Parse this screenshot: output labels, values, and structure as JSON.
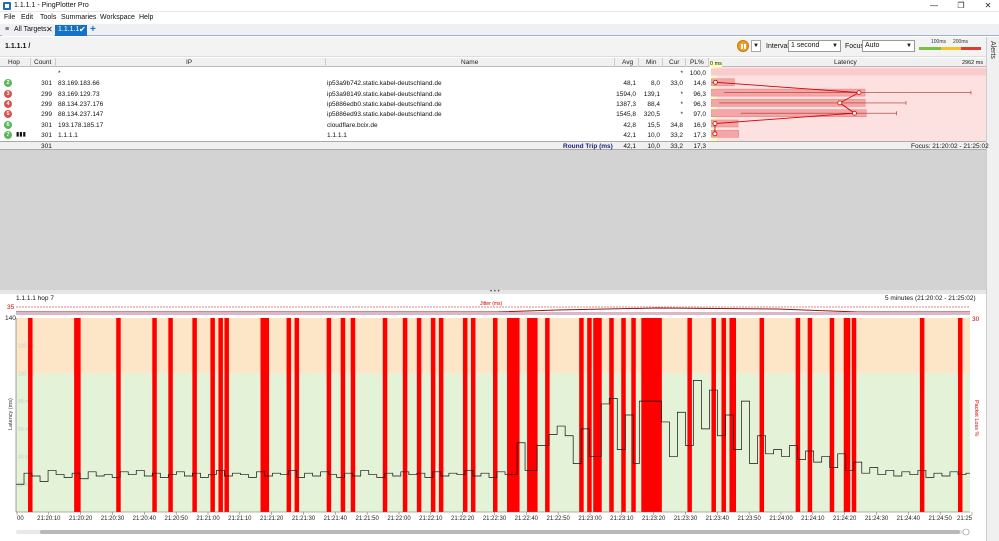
{
  "window": {
    "title": "1.1.1.1 - PingPlotter Pro",
    "minimize": "—",
    "maximize": "❐",
    "close": "✕"
  },
  "menu": [
    "File",
    "Edit",
    "Tools",
    "Summaries",
    "Workspace",
    "Help"
  ],
  "tabs": {
    "all_targets": "All Targets",
    "active": "1.1.1.1",
    "add": "+"
  },
  "toolbar": {
    "breadcrumb": "1.1.1.1 /",
    "interval_label": "Interval",
    "interval_value": "1 second",
    "focus_label": "Focus",
    "focus_value": "Auto",
    "scale_100": "100ms",
    "scale_200": "200ms"
  },
  "alerts_label": "Alerts",
  "grid": {
    "columns": {
      "hop": "Hop",
      "count": "Count",
      "ip": "IP",
      "name": "Name",
      "avg": "Avg",
      "min": "Min",
      "cur": "Cur",
      "pl": "PL%",
      "latency_start": "0 ms",
      "latency": "Latency",
      "latency_end": "2962 ms"
    },
    "rows": [
      {
        "hop": "1",
        "hop_color": "",
        "count": "",
        "ip": "*",
        "name": "",
        "avg": "",
        "min": "",
        "cur": "*",
        "pl": "100,0",
        "pl_fraction": 1.0,
        "avg_ms": 0
      },
      {
        "hop": "2",
        "hop_color": "#5cb85c",
        "count": "301",
        "ip": "83.169.183.66",
        "name": "ip53a9b742.static.kabel-deutschland.de",
        "avg": "48,1",
        "min": "8,0",
        "cur": "33,0",
        "pl": "14,6",
        "pl_fraction": 0.146,
        "avg_ms": 48.1,
        "min_ms": 8.0,
        "max_ms": 60
      },
      {
        "hop": "3",
        "hop_color": "#d9534f",
        "count": "299",
        "ip": "83.169.129.73",
        "name": "ip53a98149.static.kabel-deutschland.de",
        "avg": "1594,0",
        "min": "139,1",
        "cur": "*",
        "pl": "96,3",
        "pl_fraction": 0.963,
        "avg_ms": 1594.0,
        "min_ms": 139.1,
        "max_ms": 2800
      },
      {
        "hop": "4",
        "hop_color": "#d9534f",
        "count": "299",
        "ip": "88.134.237.176",
        "name": "ip5886edb0.static.kabel-deutschland.de",
        "avg": "1387,3",
        "min": "88,4",
        "cur": "*",
        "pl": "96,3",
        "pl_fraction": 0.963,
        "avg_ms": 1387.3,
        "min_ms": 88.4,
        "max_ms": 2100
      },
      {
        "hop": "5",
        "hop_color": "#d9534f",
        "count": "299",
        "ip": "88.134.237.147",
        "name": "ip5886ed93.static.kabel-deutschland.de",
        "avg": "1545,8",
        "min": "320,5",
        "cur": "*",
        "pl": "97,0",
        "pl_fraction": 0.97,
        "avg_ms": 1545.8,
        "min_ms": 320.5,
        "max_ms": 2000
      },
      {
        "hop": "6",
        "hop_color": "#5cb85c",
        "count": "301",
        "ip": "193.178.185.17",
        "name": "cloudflare.bcix.de",
        "avg": "42,8",
        "min": "15,5",
        "cur": "34,8",
        "pl": "16,9",
        "pl_fraction": 0.169,
        "avg_ms": 42.8,
        "min_ms": 15.5,
        "max_ms": 60
      },
      {
        "hop": "7",
        "hop_color": "#5cb85c",
        "count": "301",
        "ip": "1.1.1.1",
        "name": "1.1.1.1",
        "avg": "42,1",
        "min": "10,0",
        "cur": "33,2",
        "pl": "17,3",
        "pl_fraction": 0.173,
        "avg_ms": 42.1,
        "min_ms": 10.0,
        "max_ms": 60
      }
    ],
    "summary": {
      "count": "301",
      "label": "Round Trip (ms)",
      "avg": "42,1",
      "min": "10,0",
      "cur": "33,2",
      "pl": "17,3",
      "focus": "Focus: 21:20:02 - 21:25:02"
    }
  },
  "chart_panel": {
    "title": "1.1.1.1 hop 7",
    "range": "5 minutes (21:20:02 - 21:25:02)",
    "jitter_label": "Jitter (ms)",
    "jitter_left_value": "35",
    "jitter_right_value": "30"
  },
  "chart_data": {
    "type": "line",
    "ylabel": "Latency (ms)",
    "y2label": "Packet Loss %",
    "ylim": [
      0,
      140
    ],
    "y_top_label": "140",
    "y_ticks_faint": [
      "120 ms",
      "100 ms",
      "80 ms",
      "60 ms",
      "40 ms",
      "20 ms"
    ],
    "x_ticks": [
      "00",
      "21:20:10",
      "21:20:20",
      "21:20:30",
      "21:20:40",
      "21:20:50",
      "21:21:00",
      "21:21:10",
      "21:21:20",
      "21:21:30",
      "21:21:40",
      "21:21:50",
      "21:22:00",
      "21:22:10",
      "21:22:20",
      "21:22:30",
      "21:22:40",
      "21:22:50",
      "21:23:00",
      "21:23:10",
      "21:23:20",
      "21:23:30",
      "21:23:40",
      "21:23:50",
      "21:24:00",
      "21:24:10",
      "21:24:20",
      "21:24:30",
      "21:24:40",
      "21:24:50",
      "21:25"
    ],
    "bands": [
      {
        "from": 0,
        "to": 100,
        "color": "#e4f2d8"
      },
      {
        "from": 100,
        "to": 140,
        "color": "#fde6c8"
      }
    ],
    "loss_seconds": [
      6,
      29,
      30,
      50,
      68,
      76,
      88,
      97,
      101,
      104,
      122,
      124,
      135,
      139,
      155,
      162,
      167,
      183,
      193,
      200,
      207,
      211,
      223,
      227,
      238,
      245,
      246,
      247,
      248,
      249,
      255,
      256,
      257,
      258,
      264,
      281,
      285,
      288,
      289,
      290,
      296,
      302,
      307,
      312,
      313,
      314,
      315,
      316,
      317,
      318,
      319,
      320,
      335,
      347,
      352,
      356,
      357,
      371,
      389,
      395,
      406,
      413,
      414,
      417,
      451,
      470
    ],
    "latency_series": [
      {
        "t": 0,
        "v": 20
      },
      {
        "t": 4,
        "v": 28
      },
      {
        "t": 8,
        "v": 26
      },
      {
        "t": 12,
        "v": 22
      },
      {
        "t": 16,
        "v": 30
      },
      {
        "t": 20,
        "v": 27
      },
      {
        "t": 24,
        "v": 25
      },
      {
        "t": 28,
        "v": 28
      },
      {
        "t": 32,
        "v": 24
      },
      {
        "t": 36,
        "v": 29
      },
      {
        "t": 40,
        "v": 26
      },
      {
        "t": 44,
        "v": 27
      },
      {
        "t": 48,
        "v": 25
      },
      {
        "t": 52,
        "v": 29
      },
      {
        "t": 56,
        "v": 27
      },
      {
        "t": 60,
        "v": 30
      },
      {
        "t": 64,
        "v": 26
      },
      {
        "t": 68,
        "v": 28
      },
      {
        "t": 72,
        "v": 25
      },
      {
        "t": 76,
        "v": 27
      },
      {
        "t": 80,
        "v": 29
      },
      {
        "t": 84,
        "v": 26
      },
      {
        "t": 88,
        "v": 28
      },
      {
        "t": 92,
        "v": 25
      },
      {
        "t": 96,
        "v": 27
      },
      {
        "t": 100,
        "v": 30
      },
      {
        "t": 104,
        "v": 26
      },
      {
        "t": 108,
        "v": 28
      },
      {
        "t": 112,
        "v": 27
      },
      {
        "t": 116,
        "v": 25
      },
      {
        "t": 120,
        "v": 29
      },
      {
        "t": 124,
        "v": 26
      },
      {
        "t": 128,
        "v": 28
      },
      {
        "t": 132,
        "v": 27
      },
      {
        "t": 136,
        "v": 30
      },
      {
        "t": 140,
        "v": 25
      },
      {
        "t": 144,
        "v": 28
      },
      {
        "t": 148,
        "v": 26
      },
      {
        "t": 152,
        "v": 29
      },
      {
        "t": 156,
        "v": 27
      },
      {
        "t": 160,
        "v": 25
      },
      {
        "t": 164,
        "v": 28
      },
      {
        "t": 168,
        "v": 26
      },
      {
        "t": 172,
        "v": 30
      },
      {
        "t": 176,
        "v": 27
      },
      {
        "t": 180,
        "v": 25
      },
      {
        "t": 184,
        "v": 28
      },
      {
        "t": 188,
        "v": 26
      },
      {
        "t": 192,
        "v": 29
      },
      {
        "t": 196,
        "v": 27
      },
      {
        "t": 200,
        "v": 28
      },
      {
        "t": 204,
        "v": 25
      },
      {
        "t": 208,
        "v": 29
      },
      {
        "t": 212,
        "v": 26
      },
      {
        "t": 216,
        "v": 28
      },
      {
        "t": 220,
        "v": 27
      },
      {
        "t": 224,
        "v": 30
      },
      {
        "t": 228,
        "v": 26
      },
      {
        "t": 232,
        "v": 28
      },
      {
        "t": 236,
        "v": 25
      },
      {
        "t": 240,
        "v": 29
      },
      {
        "t": 244,
        "v": 27
      },
      {
        "t": 250,
        "v": 50
      },
      {
        "t": 254,
        "v": 30
      },
      {
        "t": 260,
        "v": 48
      },
      {
        "t": 266,
        "v": 56
      },
      {
        "t": 270,
        "v": 62
      },
      {
        "t": 274,
        "v": 55
      },
      {
        "t": 278,
        "v": 35
      },
      {
        "t": 282,
        "v": 60
      },
      {
        "t": 286,
        "v": 40
      },
      {
        "t": 292,
        "v": 78
      },
      {
        "t": 296,
        "v": 82
      },
      {
        "t": 300,
        "v": 45
      },
      {
        "t": 304,
        "v": 70
      },
      {
        "t": 308,
        "v": 35
      },
      {
        "t": 311,
        "v": 80
      },
      {
        "t": 322,
        "v": 65
      },
      {
        "t": 326,
        "v": 40
      },
      {
        "t": 330,
        "v": 72
      },
      {
        "t": 334,
        "v": 48
      },
      {
        "t": 338,
        "v": 95
      },
      {
        "t": 342,
        "v": 60
      },
      {
        "t": 346,
        "v": 88
      },
      {
        "t": 350,
        "v": 55
      },
      {
        "t": 354,
        "v": 70
      },
      {
        "t": 358,
        "v": 45
      },
      {
        "t": 362,
        "v": 80
      },
      {
        "t": 366,
        "v": 35
      },
      {
        "t": 370,
        "v": 55
      },
      {
        "t": 374,
        "v": 42
      },
      {
        "t": 378,
        "v": 45
      },
      {
        "t": 382,
        "v": 40
      },
      {
        "t": 386,
        "v": 48
      },
      {
        "t": 390,
        "v": 38
      },
      {
        "t": 394,
        "v": 44
      },
      {
        "t": 398,
        "v": 36
      },
      {
        "t": 402,
        "v": 40
      },
      {
        "t": 406,
        "v": 32
      },
      {
        "t": 410,
        "v": 42
      },
      {
        "t": 414,
        "v": 30
      },
      {
        "t": 418,
        "v": 36
      },
      {
        "t": 422,
        "v": 28
      },
      {
        "t": 426,
        "v": 32
      },
      {
        "t": 430,
        "v": 27
      },
      {
        "t": 434,
        "v": 30
      },
      {
        "t": 438,
        "v": 26
      },
      {
        "t": 442,
        "v": 29
      },
      {
        "t": 446,
        "v": 27
      },
      {
        "t": 450,
        "v": 30
      },
      {
        "t": 454,
        "v": 25
      },
      {
        "t": 458,
        "v": 28
      },
      {
        "t": 462,
        "v": 26
      },
      {
        "t": 466,
        "v": 29
      },
      {
        "t": 470,
        "v": 27
      },
      {
        "t": 474,
        "v": 28
      }
    ],
    "t_range": [
      0,
      476
    ],
    "grid": true
  },
  "colors": {
    "accent": "#1572c6",
    "loss_red": "#ff0000",
    "good_green": "#5cb85c",
    "bad_red": "#d9534f"
  }
}
